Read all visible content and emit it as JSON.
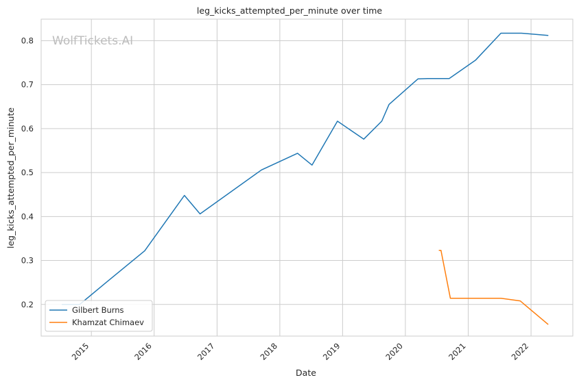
{
  "chart_data": {
    "type": "line",
    "title": "leg_kicks_attempted_per_minute over time",
    "xlabel": "Date",
    "ylabel": "leg_kicks_attempted_per_minute",
    "watermark": "WolfTickets.AI",
    "x_type": "date",
    "xlim": [
      "2014-03-15",
      "2022-09-01"
    ],
    "ylim": [
      0.128,
      0.849
    ],
    "x_tick_labels": [
      "2015",
      "2016",
      "2017",
      "2018",
      "2019",
      "2020",
      "2021",
      "2022"
    ],
    "y_tick_labels": [
      "0.2",
      "0.3",
      "0.4",
      "0.5",
      "0.6",
      "0.7",
      "0.8"
    ],
    "y_ticks": [
      0.2,
      0.3,
      0.4,
      0.5,
      0.6,
      0.7,
      0.8
    ],
    "grid": true,
    "legend_position": "lower-left",
    "series": [
      {
        "name": "Gilbert Burns",
        "color": "#1f77b4",
        "points": [
          [
            "2014-07-15",
            0.2
          ],
          [
            "2014-10-25",
            0.2
          ],
          [
            "2015-03-28",
            0.25
          ],
          [
            "2015-11-07",
            0.322
          ],
          [
            "2016-06-25",
            0.448
          ],
          [
            "2016-09-24",
            0.406
          ],
          [
            "2017-09-16",
            0.506
          ],
          [
            "2018-04-14",
            0.544
          ],
          [
            "2018-07-07",
            0.517
          ],
          [
            "2018-12-02",
            0.617
          ],
          [
            "2019-05-04",
            0.576
          ],
          [
            "2019-08-17",
            0.617
          ],
          [
            "2019-09-28",
            0.655
          ],
          [
            "2020-03-14",
            0.713
          ],
          [
            "2020-05-10",
            0.714
          ],
          [
            "2020-09-12",
            0.714
          ],
          [
            "2021-02-13",
            0.756
          ],
          [
            "2021-07-10",
            0.817
          ],
          [
            "2021-11-06",
            0.817
          ],
          [
            "2022-04-09",
            0.812
          ]
        ]
      },
      {
        "name": "Khamzat Chimaev",
        "color": "#ff7f0e",
        "points": [
          [
            "2020-07-16",
            0.323
          ],
          [
            "2020-07-26",
            0.323
          ],
          [
            "2020-09-19",
            0.214
          ],
          [
            "2021-07-10",
            0.214
          ],
          [
            "2021-10-30",
            0.208
          ],
          [
            "2022-04-09",
            0.155
          ]
        ]
      }
    ]
  }
}
